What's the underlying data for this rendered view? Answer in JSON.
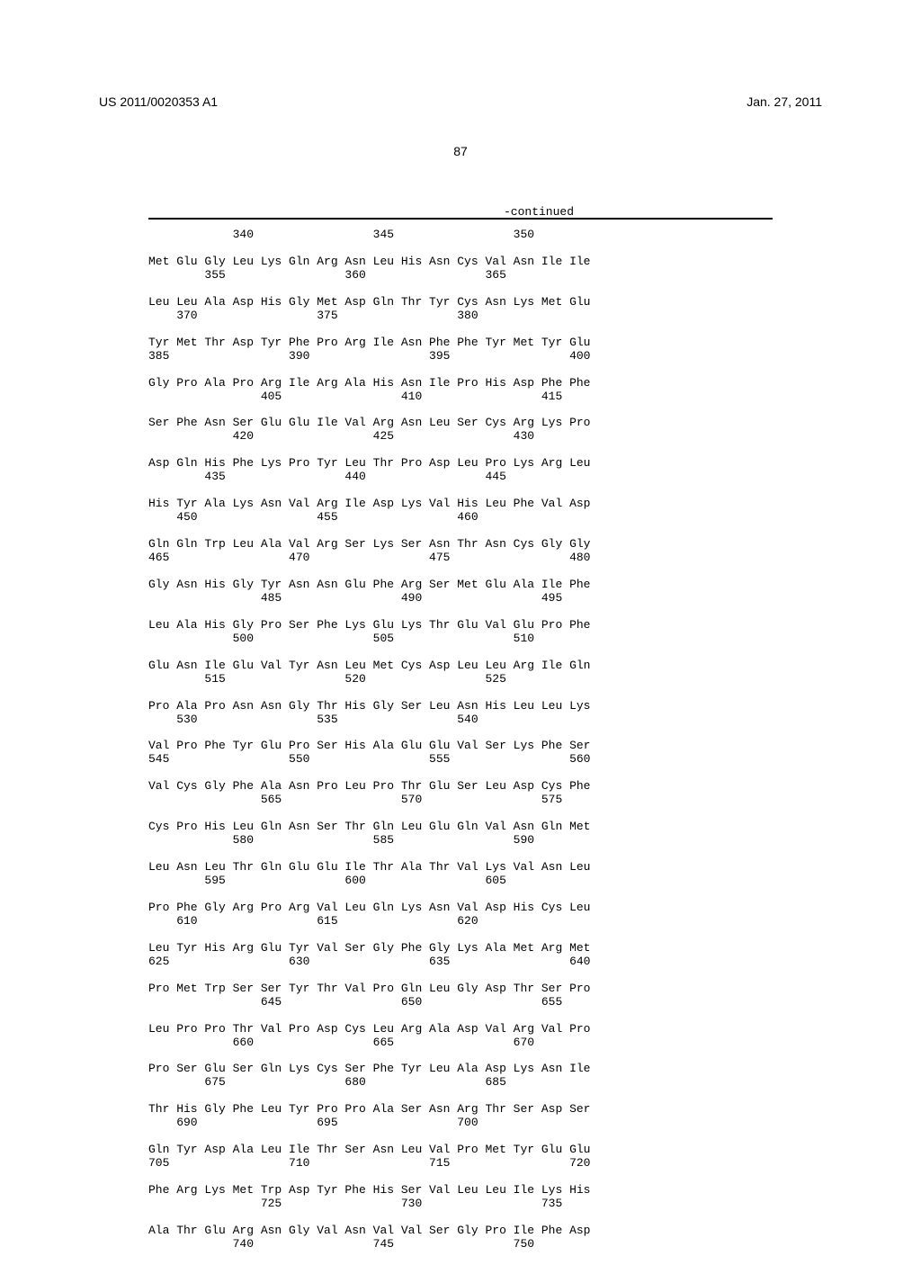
{
  "header": {
    "publication_number": "US 2011/0020353 A1",
    "publication_date": "Jan. 27, 2011"
  },
  "page_number": "87",
  "continued_label": "-continued",
  "sequence": {
    "font_family": "Courier New",
    "font_size_pt": 10,
    "background_color": "#ffffff",
    "text_color": "#000000",
    "divider_color": "#000000",
    "blocks": [
      {
        "residues": "",
        "numbers": "            340                 345                 350"
      },
      {
        "residues": "Met Glu Gly Leu Lys Gln Arg Asn Leu His Asn Cys Val Asn Ile Ile",
        "numbers": "        355                 360                 365"
      },
      {
        "residues": "Leu Leu Ala Asp His Gly Met Asp Gln Thr Tyr Cys Asn Lys Met Glu",
        "numbers": "    370                 375                 380"
      },
      {
        "residues": "Tyr Met Thr Asp Tyr Phe Pro Arg Ile Asn Phe Phe Tyr Met Tyr Glu",
        "numbers": "385                 390                 395                 400"
      },
      {
        "residues": "Gly Pro Ala Pro Arg Ile Arg Ala His Asn Ile Pro His Asp Phe Phe",
        "numbers": "                405                 410                 415"
      },
      {
        "residues": "Ser Phe Asn Ser Glu Glu Ile Val Arg Asn Leu Ser Cys Arg Lys Pro",
        "numbers": "            420                 425                 430"
      },
      {
        "residues": "Asp Gln His Phe Lys Pro Tyr Leu Thr Pro Asp Leu Pro Lys Arg Leu",
        "numbers": "        435                 440                 445"
      },
      {
        "residues": "His Tyr Ala Lys Asn Val Arg Ile Asp Lys Val His Leu Phe Val Asp",
        "numbers": "    450                 455                 460"
      },
      {
        "residues": "Gln Gln Trp Leu Ala Val Arg Ser Lys Ser Asn Thr Asn Cys Gly Gly",
        "numbers": "465                 470                 475                 480"
      },
      {
        "residues": "Gly Asn His Gly Tyr Asn Asn Glu Phe Arg Ser Met Glu Ala Ile Phe",
        "numbers": "                485                 490                 495"
      },
      {
        "residues": "Leu Ala His Gly Pro Ser Phe Lys Glu Lys Thr Glu Val Glu Pro Phe",
        "numbers": "            500                 505                 510"
      },
      {
        "residues": "Glu Asn Ile Glu Val Tyr Asn Leu Met Cys Asp Leu Leu Arg Ile Gln",
        "numbers": "        515                 520                 525"
      },
      {
        "residues": "Pro Ala Pro Asn Asn Gly Thr His Gly Ser Leu Asn His Leu Leu Lys",
        "numbers": "    530                 535                 540"
      },
      {
        "residues": "Val Pro Phe Tyr Glu Pro Ser His Ala Glu Glu Val Ser Lys Phe Ser",
        "numbers": "545                 550                 555                 560"
      },
      {
        "residues": "Val Cys Gly Phe Ala Asn Pro Leu Pro Thr Glu Ser Leu Asp Cys Phe",
        "numbers": "                565                 570                 575"
      },
      {
        "residues": "Cys Pro His Leu Gln Asn Ser Thr Gln Leu Glu Gln Val Asn Gln Met",
        "numbers": "            580                 585                 590"
      },
      {
        "residues": "Leu Asn Leu Thr Gln Glu Glu Ile Thr Ala Thr Val Lys Val Asn Leu",
        "numbers": "        595                 600                 605"
      },
      {
        "residues": "Pro Phe Gly Arg Pro Arg Val Leu Gln Lys Asn Val Asp His Cys Leu",
        "numbers": "    610                 615                 620"
      },
      {
        "residues": "Leu Tyr His Arg Glu Tyr Val Ser Gly Phe Gly Lys Ala Met Arg Met",
        "numbers": "625                 630                 635                 640"
      },
      {
        "residues": "Pro Met Trp Ser Ser Tyr Thr Val Pro Gln Leu Gly Asp Thr Ser Pro",
        "numbers": "                645                 650                 655"
      },
      {
        "residues": "Leu Pro Pro Thr Val Pro Asp Cys Leu Arg Ala Asp Val Arg Val Pro",
        "numbers": "            660                 665                 670"
      },
      {
        "residues": "Pro Ser Glu Ser Gln Lys Cys Ser Phe Tyr Leu Ala Asp Lys Asn Ile",
        "numbers": "        675                 680                 685"
      },
      {
        "residues": "Thr His Gly Phe Leu Tyr Pro Pro Ala Ser Asn Arg Thr Ser Asp Ser",
        "numbers": "    690                 695                 700"
      },
      {
        "residues": "Gln Tyr Asp Ala Leu Ile Thr Ser Asn Leu Val Pro Met Tyr Glu Glu",
        "numbers": "705                 710                 715                 720"
      },
      {
        "residues": "Phe Arg Lys Met Trp Asp Tyr Phe His Ser Val Leu Leu Ile Lys His",
        "numbers": "                725                 730                 735"
      },
      {
        "residues": "Ala Thr Glu Arg Asn Gly Val Asn Val Val Ser Gly Pro Ile Phe Asp",
        "numbers": "            740                 745                 750"
      }
    ]
  }
}
